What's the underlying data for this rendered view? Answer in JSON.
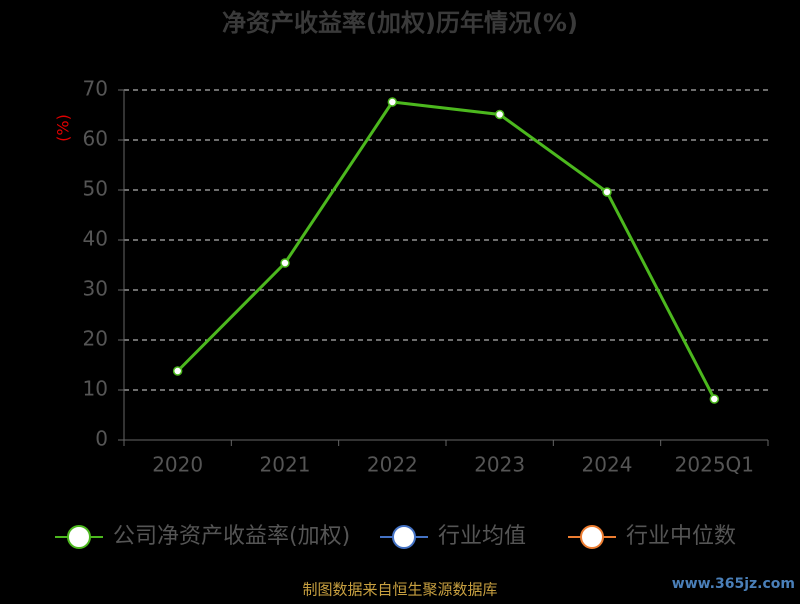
{
  "chart_data": {
    "type": "line",
    "title": "净资产收益率(加权)历年情况(%)",
    "y_label": "(%)",
    "categories": [
      "2020",
      "2021",
      "2022",
      "2023",
      "2024",
      "2025Q1"
    ],
    "series": [
      {
        "name": "公司净资产收益率(加权)",
        "color": "#4cb81e",
        "values": [
          13.8,
          35.4,
          67.6,
          65.1,
          49.6,
          8.2
        ]
      },
      {
        "name": "行业均值",
        "color": "#4472c4",
        "values": [
          null,
          null,
          null,
          null,
          null,
          null
        ]
      },
      {
        "name": "行业中位数",
        "color": "#ed7d31",
        "values": [
          null,
          null,
          null,
          null,
          null,
          null
        ]
      }
    ],
    "ylim": [
      0,
      70
    ],
    "yticks": [
      0,
      10,
      20,
      30,
      40,
      50,
      60,
      70
    ],
    "grid": true,
    "source": "制图数据来自恒生聚源数据库",
    "watermark": "www.365jz.com"
  }
}
